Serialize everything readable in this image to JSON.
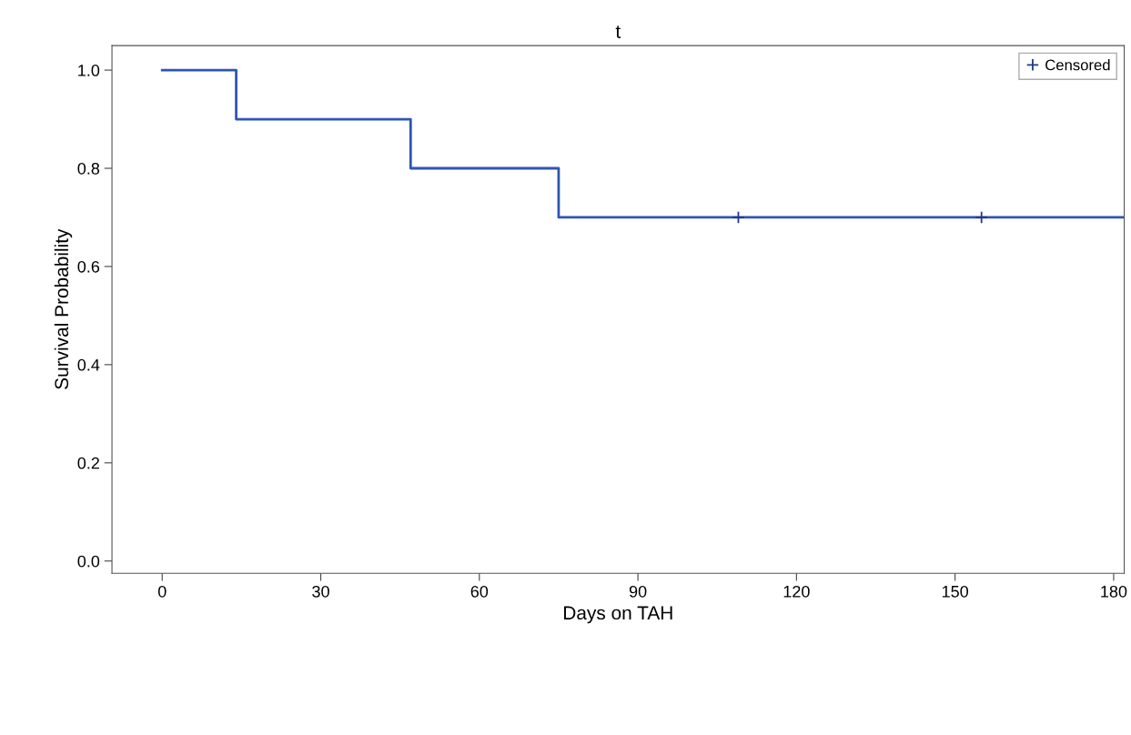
{
  "chart_data": {
    "type": "step",
    "title": "t",
    "xlabel": "Days on TAH",
    "ylabel": "Survival Probability",
    "series": [
      {
        "color": "#2f55b4",
        "x": [
          0,
          14,
          47,
          75,
          182
        ],
        "values": [
          1.0,
          0.9,
          0.8,
          0.7,
          0.7
        ]
      },
      {
        "type": "scatter",
        "name": "Censored",
        "color": "#1f3a8a",
        "x": [
          109,
          155
        ],
        "values": [
          0.7,
          0.7
        ],
        "marker": "cross"
      }
    ],
    "xlim": [
      -9.5,
      182
    ],
    "xticks": [
      0,
      30,
      60,
      90,
      120,
      150,
      180
    ],
    "ylim": [
      -0.025,
      1.05
    ],
    "yticks": [
      {
        "value": 0,
        "label": "0.0"
      },
      0.2,
      0.4,
      0.6,
      0.8,
      {
        "value": 1,
        "label": "1.0"
      }
    ],
    "grid": false,
    "legend": "top right"
  }
}
